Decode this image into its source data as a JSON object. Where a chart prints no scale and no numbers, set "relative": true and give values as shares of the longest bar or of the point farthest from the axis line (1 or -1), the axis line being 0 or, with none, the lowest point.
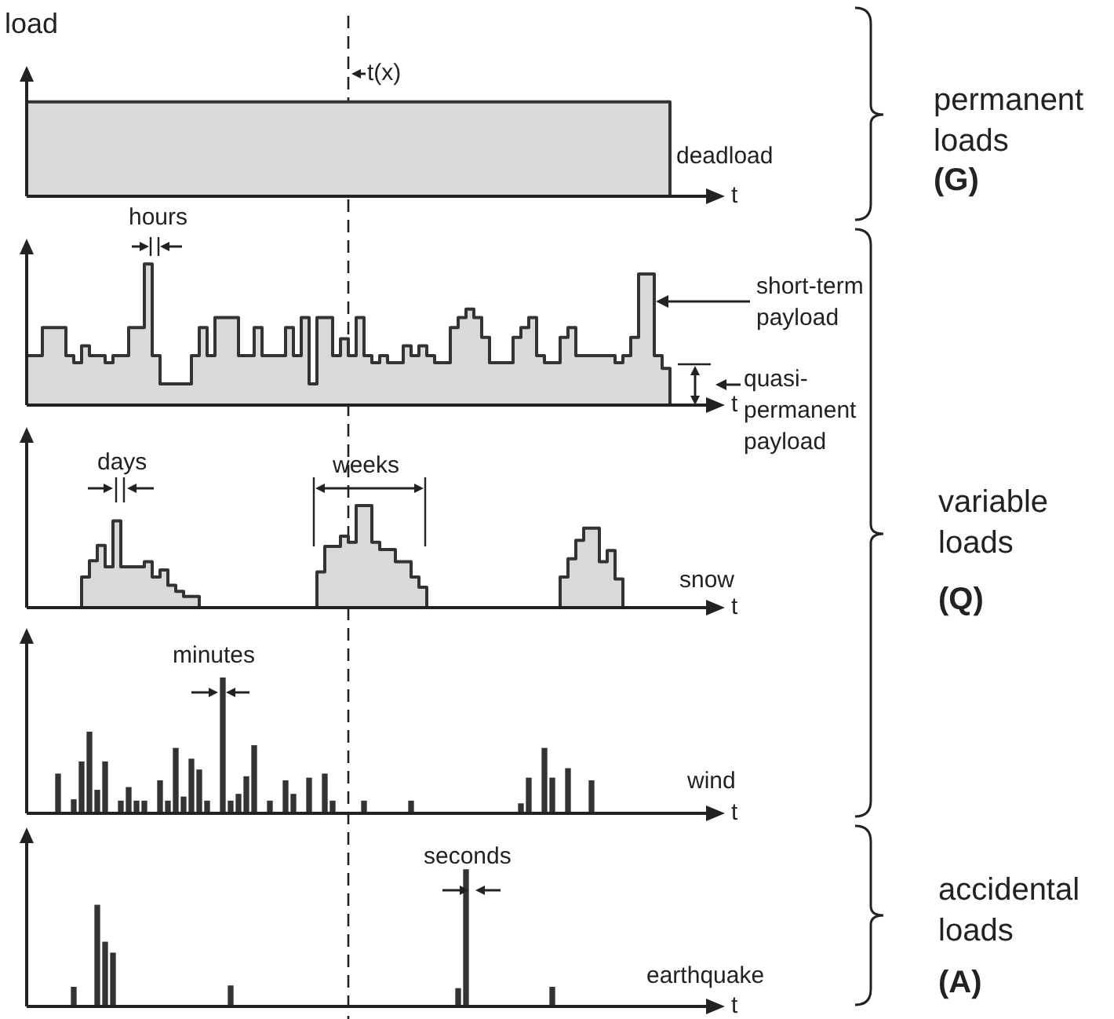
{
  "chart_data": [
    {
      "type": "step",
      "relative": true,
      "tick_labels": false,
      "ylabel": "load",
      "xlabel": "t",
      "annotations": [
        "t(x)",
        "permanent loads",
        "(G)"
      ],
      "categories": [
        null,
        null,
        null,
        null,
        null,
        null,
        null,
        null,
        null,
        null,
        null,
        null,
        null,
        null,
        null,
        null,
        null,
        null,
        null,
        null,
        null,
        null,
        null,
        null,
        null,
        null,
        null,
        null,
        null,
        null,
        null,
        null,
        null,
        null,
        null,
        null,
        null,
        null,
        null,
        null,
        null,
        null,
        null,
        null,
        null,
        null,
        null,
        null,
        null,
        null,
        null,
        null,
        null,
        null,
        null,
        null,
        null,
        null,
        null,
        null,
        null,
        null,
        null,
        null,
        null,
        null,
        null,
        null,
        null,
        null,
        null,
        null,
        null,
        null,
        null,
        null,
        null,
        null,
        null,
        null,
        null,
        null,
        null,
        null,
        null,
        null,
        null,
        null,
        null
      ],
      "series": [
        {
          "name": "deadload",
          "color": "#333333",
          "values": [
            1,
            1,
            1,
            1,
            1,
            1,
            1,
            1,
            1,
            1,
            1,
            1,
            1,
            1,
            1,
            1,
            1,
            1,
            1,
            1,
            1,
            1,
            1,
            1,
            1,
            1,
            1,
            1,
            1,
            1,
            1,
            1,
            1,
            1,
            1,
            1,
            1,
            1,
            1,
            1,
            1,
            1,
            1,
            1,
            1,
            1,
            1,
            1,
            1,
            1,
            1,
            1,
            1,
            1,
            1,
            1,
            1,
            1,
            1,
            1,
            1,
            1,
            1,
            1,
            1,
            1,
            1,
            1,
            1,
            1,
            1,
            1,
            1,
            1,
            1,
            1,
            1,
            1,
            1,
            1,
            1,
            1,
            0,
            null,
            null,
            null,
            null,
            null,
            null
          ]
        }
      ]
    },
    {
      "type": "step",
      "relative": true,
      "tick_labels": false,
      "xlabel": "t",
      "annotations": [
        "hours",
        "short-term payload",
        "quasi-permanent payload"
      ],
      "categories": [
        null,
        null,
        null,
        null,
        null,
        null,
        null,
        null,
        null,
        null,
        null,
        null,
        null,
        null,
        null,
        null,
        null,
        null,
        null,
        null,
        null,
        null,
        null,
        null,
        null,
        null,
        null,
        null,
        null,
        null,
        null,
        null,
        null,
        null,
        null,
        null,
        null,
        null,
        null,
        null,
        null,
        null,
        null,
        null,
        null,
        null,
        null,
        null,
        null,
        null,
        null,
        null,
        null,
        null,
        null,
        null,
        null,
        null,
        null,
        null,
        null,
        null,
        null,
        null,
        null,
        null,
        null,
        null,
        null,
        null,
        null,
        null,
        null,
        null,
        null,
        null,
        null,
        null,
        null,
        null,
        null,
        null,
        null,
        null,
        null,
        null,
        null,
        null,
        null
      ],
      "series": [
        {
          "color": "#333333",
          "values": [
            0.35,
            0.35,
            0.55,
            0.55,
            0.55,
            0.35,
            0.3,
            0.42,
            0.35,
            0.35,
            0.3,
            0.35,
            0.35,
            0.55,
            0.55,
            1,
            0.35,
            0.15,
            0.15,
            0.15,
            0.15,
            0.35,
            0.55,
            0.35,
            0.62,
            0.62,
            0.62,
            0.35,
            0.35,
            0.55,
            0.35,
            0.35,
            0.35,
            0.55,
            0.35,
            0.62,
            0.15,
            0.62,
            0.62,
            0.35,
            0.47,
            0.35,
            0.62,
            0.35,
            0.3,
            0.35,
            0.3,
            0.3,
            0.42,
            0.35,
            0.42,
            0.35,
            0.3,
            0.3,
            0.55,
            0.62,
            0.68,
            0.62,
            0.48,
            0.3,
            0.3,
            0.3,
            0.48,
            0.55,
            0.62,
            0.35,
            0.3,
            0.3,
            0.48,
            0.55,
            0.35,
            0.35,
            0.35,
            0.35,
            0.35,
            0.3,
            0.35,
            0.48,
            0.93,
            0.93,
            0.35,
            0.26,
            0,
            null,
            null,
            null,
            null,
            null,
            null
          ]
        }
      ]
    },
    {
      "type": "step",
      "relative": true,
      "tick_labels": false,
      "xlabel": "t",
      "annotations": [
        "days",
        "weeks",
        "variable loads",
        "(Q)"
      ],
      "categories": [
        null,
        null,
        null,
        null,
        null,
        null,
        null,
        null,
        null,
        null,
        null,
        null,
        null,
        null,
        null,
        null,
        null,
        null,
        null,
        null,
        null,
        null,
        null,
        null,
        null,
        null,
        null,
        null,
        null,
        null,
        null,
        null,
        null,
        null,
        null,
        null,
        null,
        null,
        null,
        null,
        null,
        null,
        null,
        null,
        null,
        null,
        null,
        null,
        null,
        null,
        null,
        null,
        null,
        null,
        null,
        null,
        null,
        null,
        null,
        null,
        null,
        null,
        null,
        null,
        null,
        null,
        null,
        null,
        null,
        null,
        null,
        null,
        null,
        null,
        null,
        null,
        null,
        null,
        null,
        null,
        null,
        null,
        null,
        null,
        null,
        null,
        null,
        null,
        null
      ],
      "series": [
        {
          "name": "snow",
          "color": "#333333",
          "values": [
            0,
            0,
            0,
            0,
            0,
            0,
            0,
            0.3,
            0.46,
            0.61,
            0.4,
            0.85,
            0.4,
            0.4,
            0.4,
            0.45,
            0.3,
            0.37,
            0.22,
            0.16,
            0.11,
            0.11,
            0,
            0,
            0,
            0,
            0,
            0,
            0,
            0,
            0,
            0,
            0,
            0,
            0,
            0,
            0,
            0.35,
            0.6,
            0.6,
            0.7,
            0.64,
            1,
            1,
            0.64,
            0.57,
            0.57,
            0.45,
            0.45,
            0.3,
            0.2,
            0,
            0,
            0,
            0,
            0,
            0,
            0,
            0,
            0,
            0,
            0,
            0,
            0,
            0,
            0,
            0,
            0,
            0.3,
            0.48,
            0.66,
            0.78,
            0.78,
            0.45,
            0.56,
            0.28,
            0,
            0,
            0,
            0,
            0,
            0,
            0,
            0,
            0,
            0,
            0,
            0,
            0
          ]
        }
      ]
    },
    {
      "type": "bar",
      "relative": true,
      "tick_labels": false,
      "xlabel": "t",
      "annotations": [
        "minutes"
      ],
      "categories": [
        null,
        null,
        null,
        null,
        null,
        null,
        null,
        null,
        null,
        null,
        null,
        null,
        null,
        null,
        null,
        null,
        null,
        null,
        null,
        null,
        null,
        null,
        null,
        null,
        null,
        null,
        null,
        null,
        null,
        null,
        null,
        null,
        null,
        null,
        null,
        null,
        null,
        null,
        null,
        null,
        null,
        null,
        null,
        null,
        null,
        null,
        null,
        null,
        null,
        null,
        null,
        null,
        null,
        null,
        null,
        null,
        null,
        null,
        null,
        null,
        null,
        null,
        null,
        null,
        null,
        null,
        null,
        null,
        null,
        null,
        null,
        null,
        null,
        null,
        null,
        null,
        null,
        null,
        null,
        null,
        null,
        null,
        null,
        null,
        null,
        null,
        null,
        null,
        null
      ],
      "series": [
        {
          "name": "wind",
          "color": "#333333",
          "values": [
            null,
            null,
            null,
            null,
            0.29,
            null,
            0.1,
            0.38,
            0.6,
            0.17,
            0.38,
            null,
            0.09,
            0.19,
            0.09,
            0.09,
            null,
            0.24,
            0.09,
            0.48,
            0.12,
            0.4,
            0.32,
            0.09,
            null,
            1,
            0.09,
            0.14,
            0.27,
            0.5,
            null,
            0.09,
            null,
            0.24,
            0.14,
            null,
            0.26,
            null,
            0.29,
            0.09,
            null,
            null,
            null,
            0.09,
            null,
            null,
            null,
            null,
            null,
            0.09,
            null,
            null,
            null,
            null,
            null,
            null,
            null,
            null,
            null,
            null,
            null,
            null,
            null,
            0.07,
            0.26,
            null,
            0.48,
            0.26,
            null,
            0.33,
            null,
            null,
            0.24,
            null,
            null,
            null,
            null,
            null,
            null,
            null,
            null,
            null,
            null,
            null,
            null,
            null,
            null,
            null,
            null
          ]
        }
      ]
    },
    {
      "type": "bar",
      "relative": true,
      "tick_labels": false,
      "xlabel": "t",
      "annotations": [
        "seconds",
        "accidental loads",
        "(A)"
      ],
      "categories": [
        null,
        null,
        null,
        null,
        null,
        null,
        null,
        null,
        null,
        null,
        null,
        null,
        null,
        null,
        null,
        null,
        null,
        null,
        null,
        null,
        null,
        null,
        null,
        null,
        null,
        null,
        null,
        null,
        null,
        null,
        null,
        null,
        null,
        null,
        null,
        null,
        null,
        null,
        null,
        null,
        null,
        null,
        null,
        null,
        null,
        null,
        null,
        null,
        null,
        null,
        null,
        null,
        null,
        null,
        null,
        null,
        null,
        null,
        null,
        null,
        null,
        null,
        null,
        null,
        null,
        null,
        null,
        null,
        null,
        null,
        null,
        null,
        null,
        null,
        null,
        null,
        null,
        null,
        null,
        null,
        null,
        null,
        null,
        null,
        null,
        null,
        null,
        null,
        null
      ],
      "series": [
        {
          "name": "earthquake",
          "color": "#333333",
          "values": [
            null,
            null,
            null,
            null,
            null,
            null,
            0.14,
            null,
            null,
            0.74,
            0.47,
            0.39,
            null,
            null,
            null,
            null,
            null,
            null,
            null,
            null,
            null,
            null,
            null,
            null,
            null,
            null,
            0.15,
            null,
            null,
            null,
            null,
            null,
            null,
            null,
            null,
            null,
            null,
            null,
            null,
            null,
            null,
            null,
            null,
            null,
            null,
            null,
            null,
            null,
            null,
            null,
            null,
            null,
            null,
            null,
            null,
            0.13,
            1,
            null,
            null,
            null,
            null,
            null,
            null,
            null,
            null,
            null,
            null,
            0.14,
            null,
            null,
            null,
            null,
            null,
            null,
            null,
            null,
            null,
            null,
            null,
            null,
            null,
            null,
            null,
            null,
            null,
            null,
            null,
            null,
            null
          ]
        }
      ]
    }
  ]
}
